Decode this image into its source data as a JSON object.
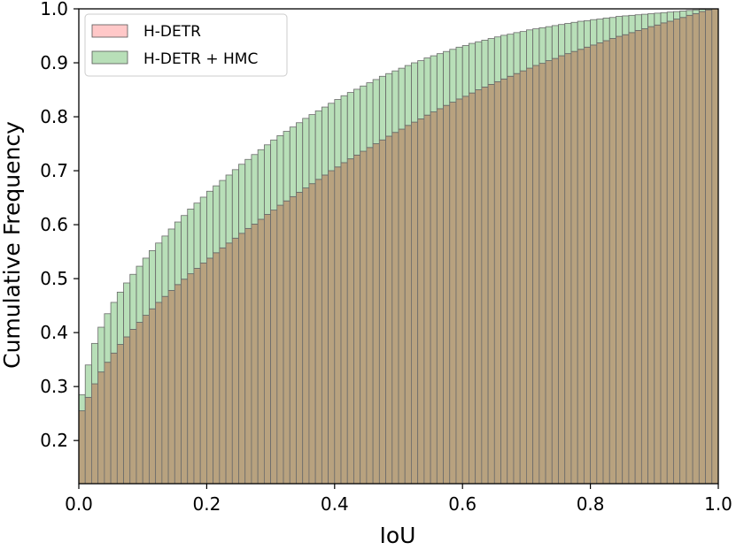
{
  "chart_data": {
    "type": "bar",
    "xlabel": "IoU",
    "ylabel": "Cumulative Frequency",
    "xlim": [
      0.0,
      1.0
    ],
    "ylim": [
      0.12,
      1.0
    ],
    "bins": 100,
    "xticks": [
      "0.0",
      "0.2",
      "0.4",
      "0.6",
      "0.8",
      "1.0"
    ],
    "yticks": [
      "0.2",
      "0.3",
      "0.4",
      "0.5",
      "0.6",
      "0.7",
      "0.8",
      "0.9",
      "1.0"
    ],
    "legend_position": "top-left",
    "series": [
      {
        "name": "H-DETR",
        "color": "#ff9b9b",
        "opacity": 0.5,
        "values": [
          0.255,
          0.28,
          0.305,
          0.327,
          0.345,
          0.362,
          0.378,
          0.392,
          0.406,
          0.419,
          0.432,
          0.444,
          0.456,
          0.467,
          0.478,
          0.489,
          0.499,
          0.509,
          0.519,
          0.529,
          0.538,
          0.548,
          0.557,
          0.566,
          0.575,
          0.584,
          0.593,
          0.601,
          0.61,
          0.619,
          0.627,
          0.636,
          0.644,
          0.652,
          0.66,
          0.668,
          0.676,
          0.684,
          0.692,
          0.7,
          0.707,
          0.715,
          0.722,
          0.729,
          0.736,
          0.743,
          0.75,
          0.757,
          0.764,
          0.771,
          0.777,
          0.784,
          0.79,
          0.796,
          0.803,
          0.809,
          0.815,
          0.821,
          0.827,
          0.833,
          0.838,
          0.844,
          0.85,
          0.855,
          0.86,
          0.865,
          0.87,
          0.875,
          0.88,
          0.885,
          0.89,
          0.895,
          0.899,
          0.904,
          0.908,
          0.913,
          0.917,
          0.921,
          0.925,
          0.929,
          0.933,
          0.937,
          0.941,
          0.945,
          0.949,
          0.952,
          0.956,
          0.96,
          0.963,
          0.967,
          0.97,
          0.974,
          0.977,
          0.981,
          0.984,
          0.988,
          0.991,
          0.995,
          0.998,
          1.0
        ]
      },
      {
        "name": "H-DETR + HMC",
        "color": "#7dc47d",
        "opacity": 0.45,
        "values": [
          0.285,
          0.34,
          0.38,
          0.41,
          0.435,
          0.456,
          0.475,
          0.492,
          0.508,
          0.523,
          0.538,
          0.552,
          0.566,
          0.579,
          0.592,
          0.605,
          0.617,
          0.629,
          0.64,
          0.651,
          0.662,
          0.672,
          0.682,
          0.692,
          0.702,
          0.712,
          0.721,
          0.73,
          0.739,
          0.748,
          0.757,
          0.765,
          0.773,
          0.781,
          0.789,
          0.797,
          0.804,
          0.811,
          0.818,
          0.825,
          0.832,
          0.839,
          0.845,
          0.851,
          0.857,
          0.863,
          0.869,
          0.875,
          0.88,
          0.885,
          0.89,
          0.895,
          0.9,
          0.904,
          0.909,
          0.913,
          0.917,
          0.921,
          0.925,
          0.929,
          0.932,
          0.936,
          0.939,
          0.942,
          0.945,
          0.948,
          0.951,
          0.953,
          0.956,
          0.958,
          0.961,
          0.963,
          0.965,
          0.967,
          0.969,
          0.971,
          0.973,
          0.975,
          0.977,
          0.978,
          0.98,
          0.981,
          0.983,
          0.984,
          0.986,
          0.987,
          0.988,
          0.989,
          0.99,
          0.991,
          0.992,
          0.993,
          0.994,
          0.995,
          0.996,
          0.997,
          0.998,
          0.999,
          1.0,
          1.0
        ]
      }
    ],
    "overlap_color": "#b8a27f"
  }
}
